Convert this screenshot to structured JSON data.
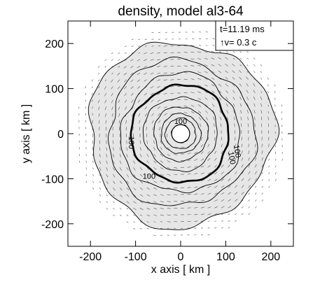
{
  "chart_data": {
    "type": "contour",
    "title": "density, model al3-64",
    "xlabel": "x axis [ km ]",
    "ylabel": "y axis [ km ]",
    "xlim": [
      -250,
      250
    ],
    "ylim": [
      -250,
      250
    ],
    "xticks": [
      -200,
      -100,
      0,
      100,
      200
    ],
    "yticks": [
      200,
      100,
      0,
      -100,
      -200
    ],
    "xtick_labels": [
      "-200",
      "-100",
      "0",
      "100",
      "200"
    ],
    "ytick_labels": [
      "200",
      "100",
      "0",
      "-100",
      "-200"
    ],
    "annotations": {
      "time": "t=11.19 ms",
      "velocity_scale": "↑v= 0.3 c"
    },
    "contour_labels": [
      "100",
      "100",
      "100",
      "100",
      "100"
    ],
    "colors": {
      "fill": "#e6e6e6",
      "line": "#000000",
      "bold_line": "#000000",
      "arrow": "#555555"
    },
    "contours": [
      {
        "name": "outer",
        "radius": 205,
        "bold": false
      },
      {
        "name": "second",
        "radius": 162,
        "bold": false
      },
      {
        "name": "third",
        "radius": 132,
        "bold": false
      },
      {
        "name": "main",
        "radius": 108,
        "bold": true
      },
      {
        "name": "inner-1",
        "radius": 82,
        "bold": false
      },
      {
        "name": "inner-2",
        "radius": 60,
        "bold": false
      },
      {
        "name": "inner-3",
        "radius": 44,
        "bold": false
      },
      {
        "name": "core-ring",
        "radius": 34,
        "bold": false
      },
      {
        "name": "core",
        "radius": 20,
        "bold": false
      }
    ]
  }
}
